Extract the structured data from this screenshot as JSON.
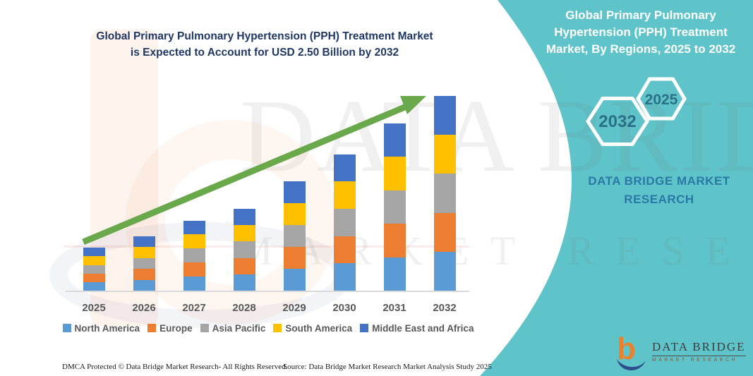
{
  "header": {
    "title_line1": "Global Primary Pulmonary Hypertension (PPH) Treatment Market",
    "title_line2": "is Expected to Account for USD 2.50 Billion by 2032"
  },
  "teal_panel": {
    "bg_color": "#5EC4CA",
    "title_lines": [
      "Global Primary Pulmonary",
      "Hypertension (PPH) Treatment",
      "Market, By Regions, 2025 to 2032"
    ],
    "hexagons": [
      {
        "label": "2032"
      },
      {
        "label": "2025"
      }
    ],
    "brand_line1": "DATA BRIDGE MARKET",
    "brand_line2": "RESEARCH",
    "logo": {
      "name_text": "DATA BRIDGE",
      "sub_text": "MARKET RESEARCH",
      "orange": "#E8822E",
      "blue": "#2E4D8F"
    }
  },
  "watermark": {
    "line1": "DATA BRIDGE",
    "line2": "MARKET RESEARCH"
  },
  "chart_data": {
    "type": "bar",
    "stacked": true,
    "title": "Global Primary Pulmonary Hypertension (PPH) Treatment Market is Expected to Account for USD 2.50 Billion by 2032",
    "unit": "USD Billion",
    "categories": [
      "2025",
      "2026",
      "2027",
      "2028",
      "2029",
      "2030",
      "2031",
      "2032"
    ],
    "series": [
      {
        "name": "North America",
        "color": "#5B9BD5",
        "values": [
          0.11,
          0.14,
          0.18,
          0.21,
          0.28,
          0.35,
          0.43,
          0.5
        ]
      },
      {
        "name": "Europe",
        "color": "#ED7D31",
        "values": [
          0.11,
          0.14,
          0.18,
          0.21,
          0.28,
          0.35,
          0.43,
          0.5
        ]
      },
      {
        "name": "Asia Pacific",
        "color": "#A5A5A5",
        "values": [
          0.11,
          0.14,
          0.18,
          0.21,
          0.28,
          0.35,
          0.43,
          0.5
        ]
      },
      {
        "name": "South America",
        "color": "#FFC000",
        "values": [
          0.11,
          0.14,
          0.18,
          0.21,
          0.28,
          0.35,
          0.43,
          0.5
        ]
      },
      {
        "name": "Middle East and Africa",
        "color": "#4472C4",
        "values": [
          0.11,
          0.14,
          0.18,
          0.21,
          0.28,
          0.35,
          0.43,
          0.5
        ]
      }
    ],
    "totals": [
      0.55,
      0.7,
      0.9,
      1.05,
      1.4,
      1.75,
      2.15,
      2.5
    ],
    "ylim": [
      0,
      2.6
    ],
    "grid": false,
    "y_axis_shown": false,
    "legend_position": "bottom",
    "trend_arrow_color": "#69A84B"
  },
  "footer": {
    "left": "DMCA Protected © Data Bridge Market Research-  All Rights Reserved.",
    "source": "Source: Data Bridge Market Research  Market Analysis Study 2025"
  }
}
